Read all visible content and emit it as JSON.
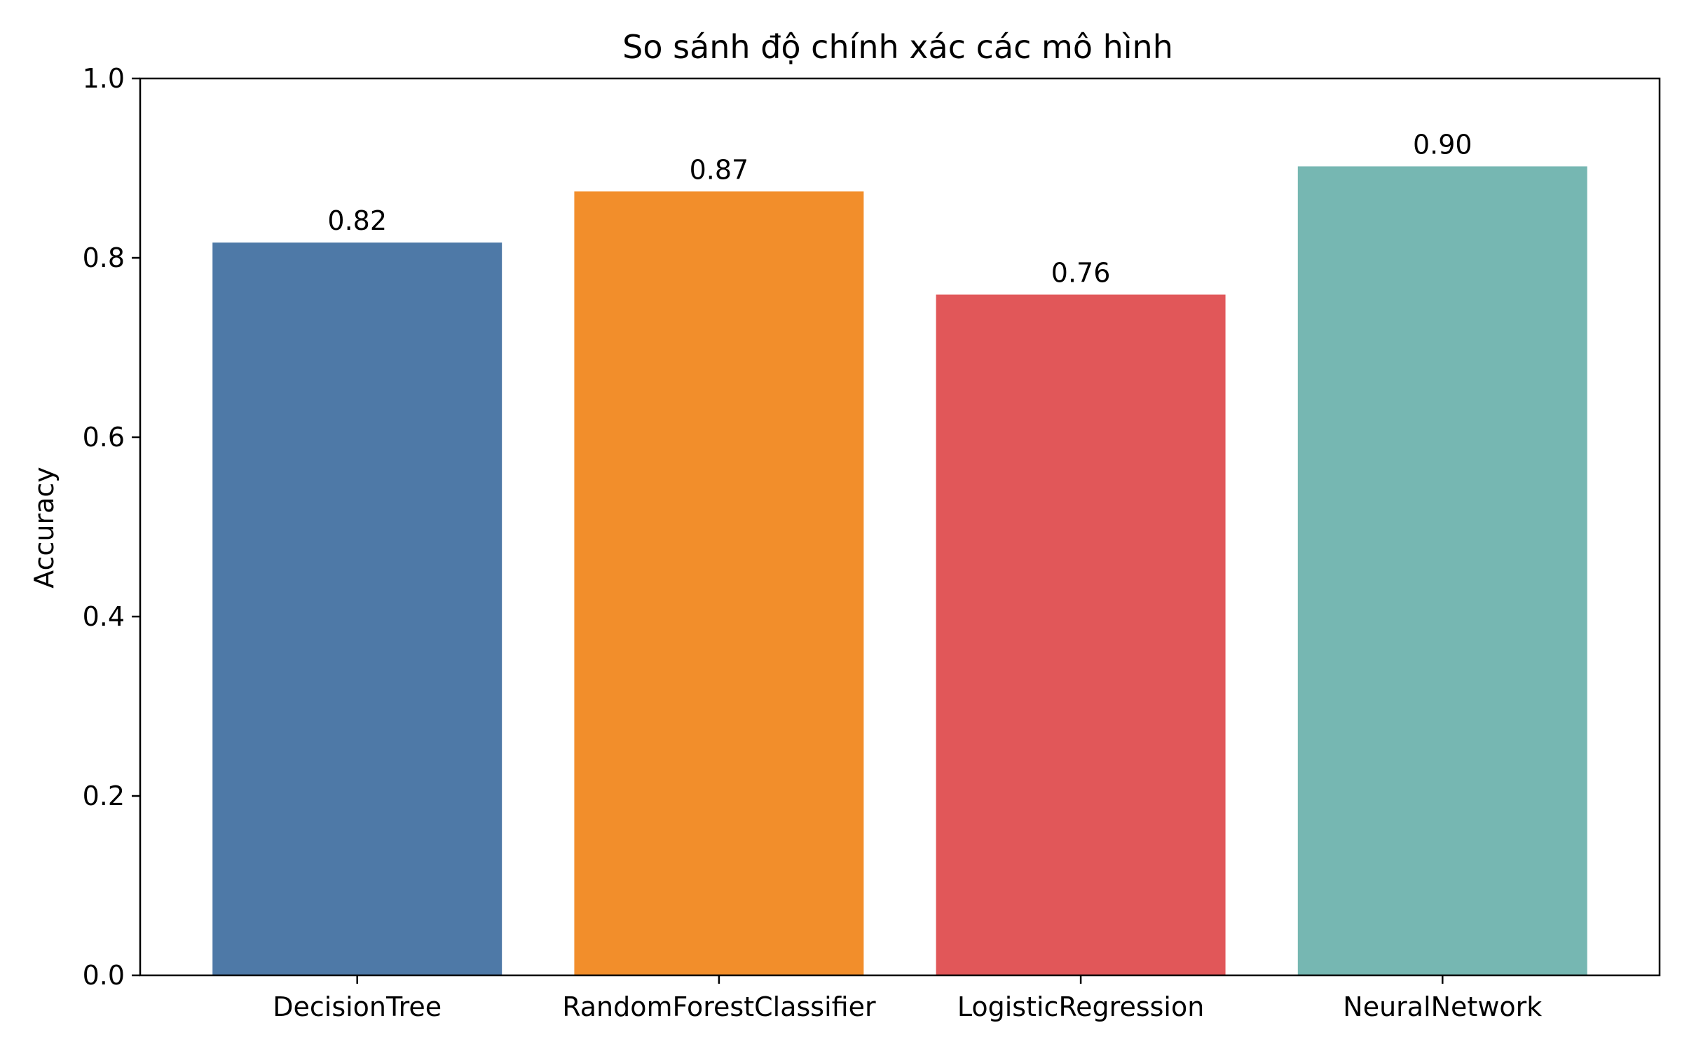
{
  "chart_data": {
    "type": "bar",
    "title": "So sánh độ chính xác các mô hình",
    "xlabel": "",
    "ylabel": "Accuracy",
    "categories": [
      "DecisionTree",
      "RandomForestClassifier",
      "LogisticRegression",
      "NeuralNetwork"
    ],
    "values": [
      0.817,
      0.874,
      0.759,
      0.902
    ],
    "value_labels": [
      "0.82",
      "0.87",
      "0.76",
      "0.90"
    ],
    "colors": [
      "#4e79a7",
      "#f28e2b",
      "#e15759",
      "#76b7b2"
    ],
    "ylim": [
      0,
      1.0
    ],
    "yticks": [
      0.0,
      0.2,
      0.4,
      0.6,
      0.8,
      1.0
    ],
    "ytick_labels": [
      "0.0",
      "0.2",
      "0.4",
      "0.6",
      "0.8",
      "1.0"
    ],
    "grid": false,
    "legend": "none"
  }
}
